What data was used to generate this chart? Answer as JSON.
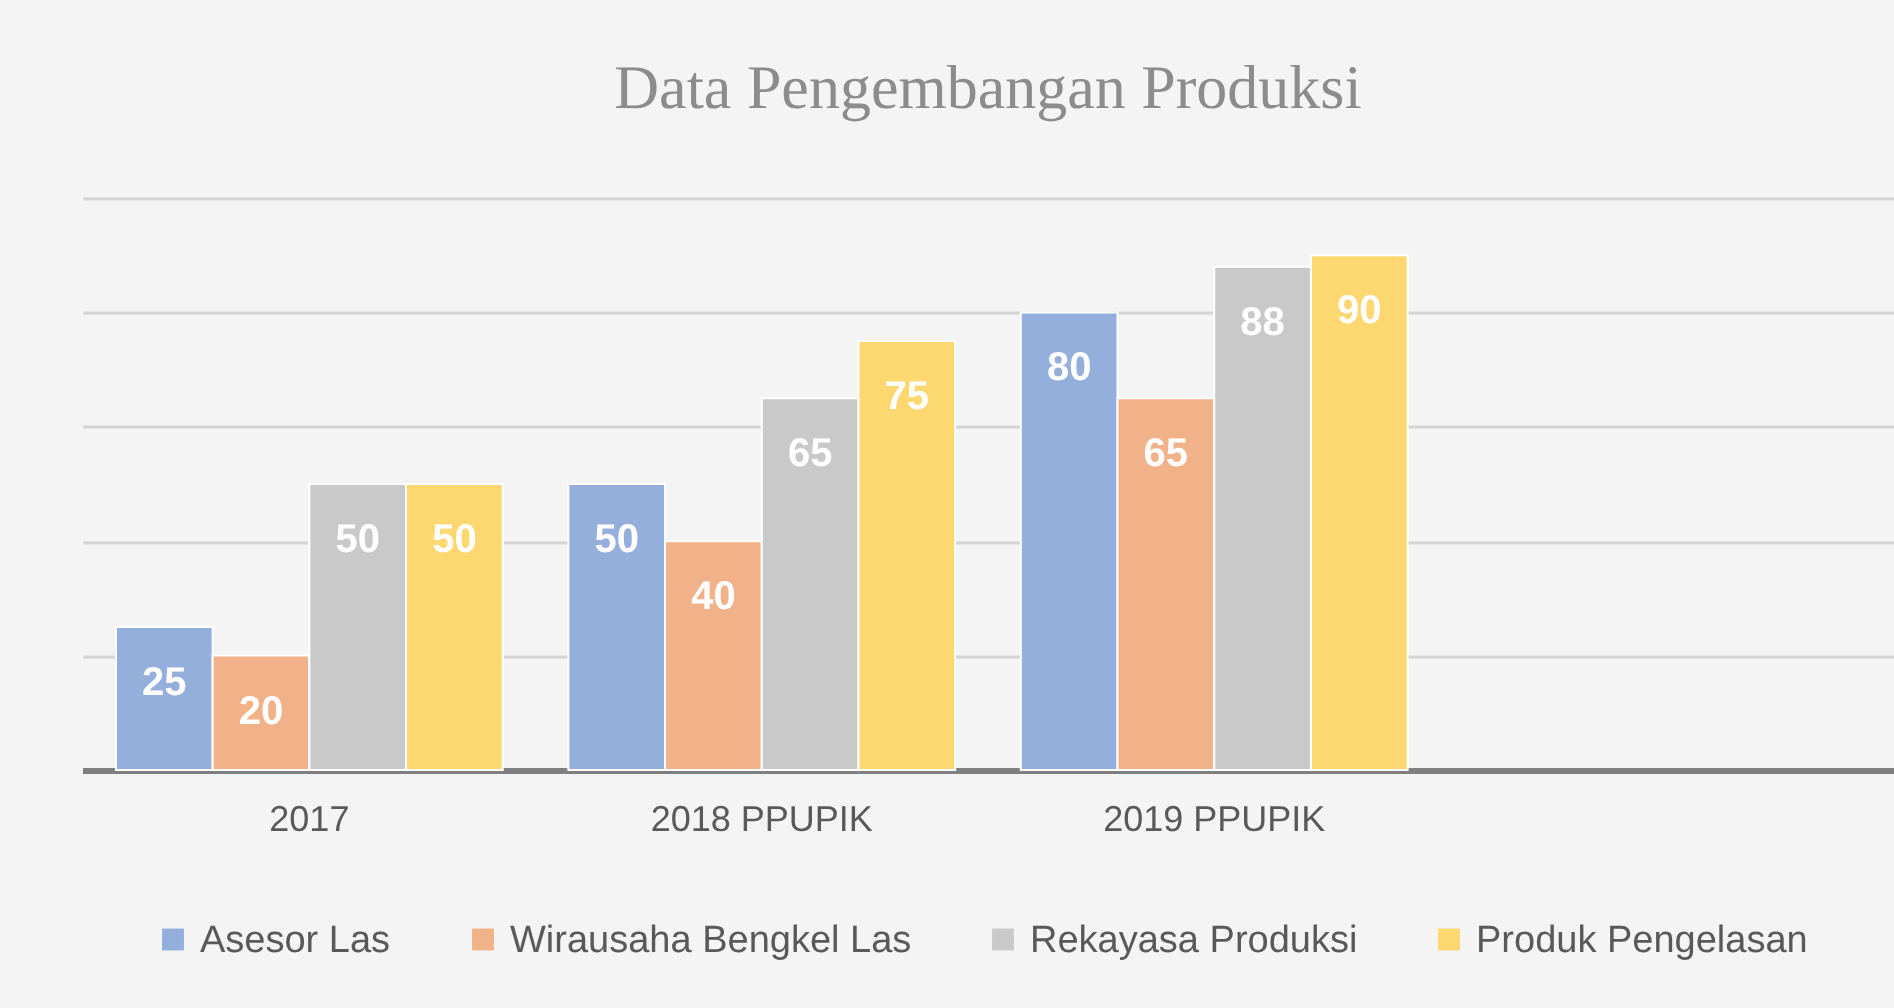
{
  "chart_data": {
    "type": "bar",
    "title": "Data Pengembangan Produksi",
    "categories": [
      "2017",
      "2018 PPUPIK",
      "2019 PPUPIK",
      null
    ],
    "series": [
      {
        "name": "Asesor Las",
        "color": "#95afdc",
        "values": [
          25,
          50,
          80,
          null
        ]
      },
      {
        "name": "Wirausaha Bengkel Las",
        "color": "#f2b289",
        "values": [
          20,
          40,
          65,
          null
        ]
      },
      {
        "name": "Rekayasa Produksi",
        "color": "#c9c9c9",
        "values": [
          50,
          65,
          88,
          null
        ]
      },
      {
        "name": "Produk Pengelasan",
        "color": "#fdd870",
        "values": [
          50,
          75,
          90,
          null
        ]
      }
    ],
    "ylim": [
      0,
      100
    ],
    "yticks": [
      {
        "value": 20,
        "label": null
      },
      {
        "value": 40,
        "label": null
      },
      {
        "value": 60,
        "label": null
      },
      {
        "value": 80,
        "label": null
      },
      {
        "value": 100,
        "label": null
      }
    ],
    "grid": "y",
    "legend": "bottom",
    "tick_labels": "x",
    "data_labels": true
  }
}
